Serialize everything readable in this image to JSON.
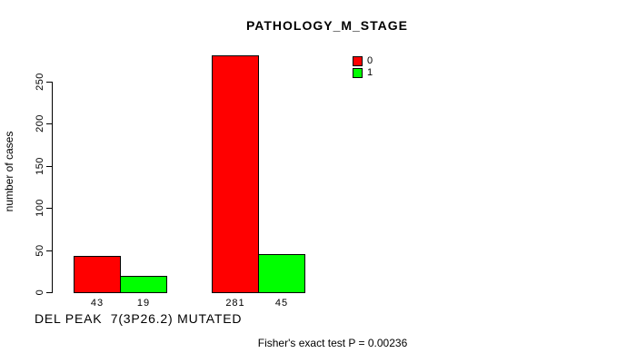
{
  "chart_data": {
    "type": "bar",
    "title": "PATHOLOGY_M_STAGE",
    "ylabel": "number of cases",
    "xlabel": "DEL PEAK  7(3P26.2) MUTATED",
    "annotation": "Fisher's exact test P = 0.00236",
    "series": [
      {
        "name": "0",
        "color": "#ff0000",
        "values": [
          43,
          281
        ]
      },
      {
        "name": "1",
        "color": "#00ff00",
        "values": [
          19,
          45
        ]
      }
    ],
    "bar_labels": [
      "43",
      "19",
      "281",
      "45"
    ],
    "yticks": [
      0,
      50,
      100,
      150,
      200,
      250
    ],
    "ylim": [
      0,
      290
    ],
    "grid": false,
    "legend": {
      "position": "top-right",
      "entries": [
        {
          "label": "0",
          "color": "#ff0000"
        },
        {
          "label": "1",
          "color": "#00ff00"
        }
      ]
    },
    "colors": {
      "bar_border": "#000000",
      "axis": "#000000",
      "background": "#ffffff",
      "text": "#000000"
    }
  }
}
